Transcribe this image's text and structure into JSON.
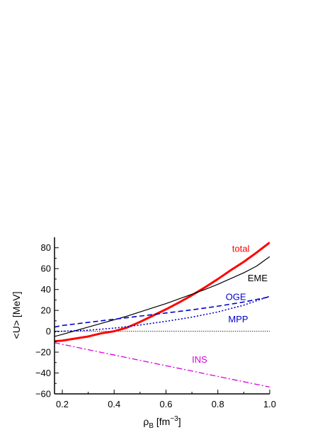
{
  "chart_data": {
    "type": "line",
    "xlabel": {
      "base": "ρ",
      "sub": "B",
      "unit_open": " [fm",
      "unit_sup": "−3",
      "unit_close": "]"
    },
    "ylabel": "<U> [MeV]",
    "xlim": [
      0.17,
      1.0
    ],
    "ylim": [
      -60,
      90
    ],
    "xticks": [
      0.2,
      0.4,
      0.6,
      0.8,
      1.0
    ],
    "xtick_labels": [
      "0.2",
      "0.4",
      "0.6",
      "0.8",
      "1.0"
    ],
    "yticks": [
      -60,
      -40,
      -20,
      0,
      20,
      40,
      60,
      80
    ],
    "ytick_labels": [
      "−60",
      "−40",
      "−20",
      "0",
      "20",
      "40",
      "60",
      "80"
    ],
    "zero_line": true,
    "grid": false,
    "series": [
      {
        "name": "total",
        "color": "#ff0000",
        "style": "solid",
        "x": [
          0.17,
          0.2,
          0.25,
          0.3,
          0.35,
          0.4,
          0.45,
          0.5,
          0.55,
          0.6,
          0.65,
          0.7,
          0.75,
          0.8,
          0.85,
          0.9,
          0.95,
          1.0
        ],
        "y": [
          -9.5,
          -9.0,
          -7.0,
          -5.0,
          -2.0,
          0.0,
          3.5,
          9.0,
          15.0,
          21.0,
          27.5,
          34.5,
          42.0,
          50.0,
          58.5,
          66.5,
          75.5,
          85.0
        ]
      },
      {
        "name": "EME",
        "color": "#000000",
        "style": "solid",
        "x": [
          0.17,
          0.2,
          0.25,
          0.3,
          0.35,
          0.4,
          0.45,
          0.5,
          0.55,
          0.6,
          0.65,
          0.7,
          0.75,
          0.8,
          0.85,
          0.9,
          0.95,
          1.0
        ],
        "y": [
          -5.0,
          -3.0,
          0.5,
          4.0,
          7.5,
          11.0,
          14.5,
          18.5,
          22.5,
          26.5,
          31.0,
          35.5,
          40.0,
          45.0,
          50.5,
          56.0,
          62.5,
          71.5
        ]
      },
      {
        "name": "OGE",
        "color": "#0000cc",
        "style": "dashed",
        "x": [
          0.17,
          0.2,
          0.3,
          0.4,
          0.5,
          0.6,
          0.7,
          0.8,
          0.9,
          1.0
        ],
        "y": [
          4.0,
          5.5,
          8.5,
          11.5,
          14.5,
          17.5,
          20.5,
          24.0,
          28.0,
          33.0
        ]
      },
      {
        "name": "MPP",
        "color": "#0000cc",
        "style": "dotted",
        "x": [
          0.17,
          0.2,
          0.3,
          0.4,
          0.5,
          0.6,
          0.7,
          0.8,
          0.9,
          1.0
        ],
        "y": [
          -0.5,
          0.0,
          1.0,
          3.0,
          6.0,
          9.5,
          13.5,
          18.5,
          25.0,
          33.5
        ]
      },
      {
        "name": "INS",
        "color": "#dd00dd",
        "style": "dashdot",
        "x": [
          0.17,
          1.0
        ],
        "y": [
          -11.0,
          -53.5
        ]
      }
    ],
    "annotations": [
      {
        "text": "total",
        "series": "total",
        "color": "#ff0000",
        "x": 0.855,
        "y": 76
      },
      {
        "text": "EME",
        "series": "EME",
        "color": "#000000",
        "x": 0.915,
        "y": 48
      },
      {
        "text": "OGE",
        "series": "OGE",
        "color": "#0000cc",
        "x": 0.83,
        "y": 30
      },
      {
        "text": "MPP",
        "series": "MPP",
        "color": "#0000cc",
        "x": 0.84,
        "y": 8.5
      },
      {
        "text": "INS",
        "series": "INS",
        "color": "#dd00dd",
        "x": 0.7,
        "y": -30
      }
    ]
  }
}
